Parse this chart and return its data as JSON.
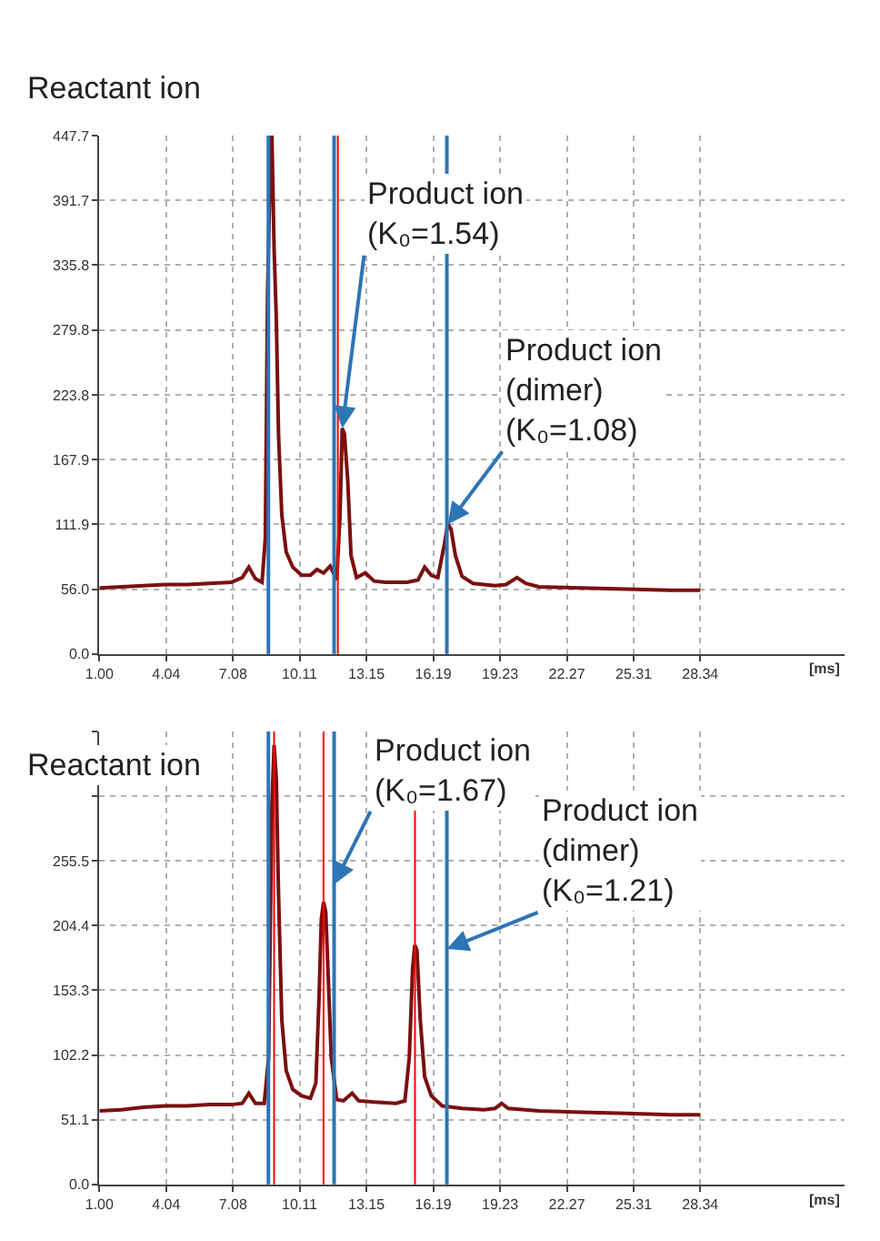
{
  "chart_data": [
    {
      "type": "line",
      "xlabel": "[ms]",
      "xlim": [
        1.0,
        34.9
      ],
      "ylim": [
        0,
        447.7
      ],
      "xticks": [
        {
          "value": 1.0,
          "label": "1.00"
        },
        4.04,
        7.08,
        10.11,
        13.15,
        16.19,
        19.23,
        22.27,
        25.31,
        28.34
      ],
      "yticks": [
        {
          "value": 0,
          "label": "0.0"
        },
        {
          "value": 56.0,
          "label": "56.0"
        },
        111.9,
        167.9,
        223.8,
        279.8,
        335.8,
        391.7,
        447.7
      ],
      "grid": true,
      "marker": "none",
      "line_style": "solid",
      "series": [
        {
          "color": "#7b0f0f",
          "x": [
            1.0,
            2,
            3,
            4,
            5,
            6,
            7,
            7.5,
            7.8,
            8.1,
            8.4,
            8.55,
            8.65,
            8.75,
            8.85,
            8.95,
            9.05,
            9.15,
            9.3,
            9.5,
            9.8,
            10.2,
            10.6,
            10.9,
            11.2,
            11.5,
            11.8,
            11.95,
            12.05,
            12.15,
            12.3,
            12.45,
            12.7,
            13.1,
            13.5,
            14,
            15,
            15.5,
            15.8,
            16.1,
            16.4,
            16.7,
            16.85,
            17.0,
            17.2,
            17.5,
            18,
            19,
            19.5,
            20.0,
            20.4,
            21,
            23,
            25,
            27,
            28.34
          ],
          "values": [
            57,
            58,
            59,
            60,
            60,
            61,
            62,
            66,
            75,
            65,
            62,
            100,
            310,
            400,
            447.7,
            350,
            290,
            190,
            120,
            88,
            75,
            68,
            68,
            73,
            70,
            76,
            64,
            120,
            195,
            190,
            150,
            85,
            66,
            70,
            63,
            62,
            62,
            64,
            75,
            68,
            66,
            95,
            112,
            108,
            85,
            67,
            61,
            59,
            60,
            66,
            61,
            58,
            57,
            56,
            55,
            55
          ]
        }
      ],
      "ref_lines": [
        {
          "axis": "x",
          "value": 8.69,
          "color": "#2e75b6"
        },
        {
          "axis": "x",
          "value": 11.68,
          "color": "#2e75b6"
        },
        {
          "axis": "x",
          "value": 16.81,
          "color": "#2e75b6"
        },
        {
          "axis": "x",
          "value": 11.85,
          "color": "#ff0000"
        }
      ],
      "annotations": [
        "Reactant ion",
        {
          "text": "Product ion\n(K₀=1.54)",
          "x": 12.05,
          "y": 195
        },
        {
          "text": "Product ion\n(dimer)\n(K₀=1.08)",
          "x": 16.85,
          "y": 112
        }
      ]
    },
    {
      "type": "line",
      "xlabel": "[ms]",
      "xlim": [
        1.0,
        34.9
      ],
      "ylim": [
        0,
        357.7
      ],
      "xticks": [
        {
          "value": 1.0,
          "label": "1.00"
        },
        4.04,
        7.08,
        10.11,
        13.15,
        16.19,
        19.23,
        22.27,
        25.31,
        28.34
      ],
      "yticks": [
        {
          "value": 0,
          "label": "0.0"
        },
        51.1,
        102.2,
        153.3,
        204.4,
        255.5,
        {
          "value": 306.6,
          "label": null
        },
        {
          "value": 357.7,
          "label": null
        }
      ],
      "grid": true,
      "marker": "none",
      "line_style": "solid",
      "series": [
        {
          "color": "#7b0f0f",
          "x": [
            1.0,
            2,
            3,
            4,
            5,
            6,
            7,
            7.5,
            7.8,
            8.1,
            8.5,
            8.7,
            8.85,
            8.95,
            9.05,
            9.15,
            9.3,
            9.5,
            9.8,
            10.2,
            10.6,
            10.85,
            11.0,
            11.1,
            11.2,
            11.3,
            11.4,
            11.55,
            11.8,
            12.1,
            12.5,
            12.8,
            13.5,
            14.5,
            14.9,
            15.1,
            15.25,
            15.35,
            15.45,
            15.6,
            15.8,
            16.1,
            16.6,
            17.5,
            18.5,
            19.0,
            19.3,
            19.6,
            21,
            23,
            25,
            27,
            28.34
          ],
          "values": [
            58,
            59,
            61,
            62,
            62,
            63,
            63,
            64,
            72,
            64,
            64,
            100,
            300,
            347,
            320,
            230,
            130,
            90,
            75,
            70,
            68,
            80,
            150,
            210,
            223,
            215,
            170,
            100,
            67,
            66,
            72,
            66,
            65,
            64,
            66,
            100,
            170,
            189,
            185,
            130,
            85,
            70,
            62,
            60,
            59,
            60,
            64,
            60,
            58,
            57,
            56,
            55,
            55
          ]
        }
      ],
      "ref_lines": [
        {
          "axis": "x",
          "value": 8.69,
          "color": "#2e75b6"
        },
        {
          "axis": "x",
          "value": 11.68,
          "color": "#2e75b6"
        },
        {
          "axis": "x",
          "value": 16.81,
          "color": "#2e75b6"
        },
        {
          "axis": "x",
          "value": 8.95,
          "color": "#ff0000"
        },
        {
          "axis": "x",
          "value": 11.2,
          "color": "#ff0000"
        },
        {
          "axis": "x",
          "value": 15.36,
          "color": "#ff0000"
        }
      ],
      "annotations": [
        "Reactant ion",
        {
          "text": "Product ion\n(K₀=1.67)",
          "x": 11.68,
          "y": 237
        },
        {
          "text": "Product ion\n(dimer)\n(K₀=1.21)",
          "x": 16.81,
          "y": 186
        }
      ]
    }
  ]
}
